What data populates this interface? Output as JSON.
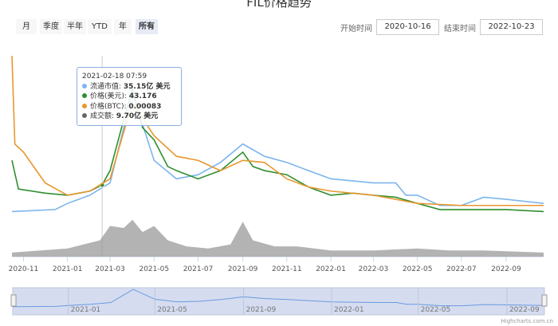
{
  "title": "FIL价格趋势",
  "range_buttons": [
    {
      "label": "月"
    },
    {
      "label": "季度"
    },
    {
      "label": "半年"
    },
    {
      "label": "YTD"
    },
    {
      "label": "年"
    },
    {
      "label": "所有",
      "selected": true
    }
  ],
  "start_label": "开始时间",
  "start_value": "2020-10-16",
  "end_label": "结束时间",
  "end_value": "2022-10-23",
  "tooltip": {
    "date": "2021-02-18 07:59",
    "rows": [
      {
        "label": "流通市值: ",
        "value": "35.15亿 美元",
        "color": "#7cb5ec"
      },
      {
        "label": "价格(美元): ",
        "value": "43.176",
        "color": "#2f8f2f"
      },
      {
        "label": "价格(BTC): ",
        "value": "0.00083",
        "color": "#e8962e"
      },
      {
        "label": "成交额: ",
        "value": "9.70亿 美元",
        "color": "#666666"
      }
    ]
  },
  "credit": "Highcharts.com.cn",
  "chart_data": {
    "type": "line",
    "title": "FIL价格趋势",
    "xlim": [
      "2020-10-16",
      "2022-10-23"
    ],
    "ylim": [
      0,
      100
    ],
    "x_ticks": [
      "2020-11",
      "2021-01",
      "2021-03",
      "2021-05",
      "2021-07",
      "2021-09",
      "2021-11",
      "2022-01",
      "2022-03",
      "2022-05",
      "2022-07",
      "2022-09"
    ],
    "navigator_ticks": [
      "2021-01",
      "2021-05",
      "2021-09",
      "2022-01",
      "2022-05",
      "2022-09"
    ],
    "series": [
      {
        "name": "流通市值",
        "color": "#7cb5ec",
        "points": [
          [
            "2020-10-16",
            22
          ],
          [
            "2020-12-15",
            23
          ],
          [
            "2021-01-01",
            26
          ],
          [
            "2021-02-01",
            30
          ],
          [
            "2021-03-01",
            36
          ],
          [
            "2021-03-20",
            63
          ],
          [
            "2021-04-01",
            80
          ],
          [
            "2021-05-01",
            47
          ],
          [
            "2021-06-01",
            38
          ],
          [
            "2021-07-01",
            40
          ],
          [
            "2021-08-01",
            46
          ],
          [
            "2021-09-01",
            55
          ],
          [
            "2021-10-01",
            49
          ],
          [
            "2021-11-01",
            46
          ],
          [
            "2021-12-01",
            42
          ],
          [
            "2022-01-01",
            38
          ],
          [
            "2022-03-01",
            36
          ],
          [
            "2022-04-01",
            36
          ],
          [
            "2022-04-15",
            30
          ],
          [
            "2022-05-01",
            30
          ],
          [
            "2022-06-01",
            25
          ],
          [
            "2022-07-01",
            25
          ],
          [
            "2022-08-01",
            29
          ],
          [
            "2022-09-01",
            28
          ],
          [
            "2022-10-23",
            26
          ]
        ]
      },
      {
        "name": "价格(美元)",
        "color": "#2f8f2f",
        "points": [
          [
            "2020-10-16",
            47
          ],
          [
            "2020-10-25",
            33
          ],
          [
            "2020-12-01",
            31
          ],
          [
            "2021-01-01",
            30
          ],
          [
            "2021-02-01",
            32
          ],
          [
            "2021-02-18",
            35
          ],
          [
            "2021-03-01",
            42
          ],
          [
            "2021-03-20",
            67
          ],
          [
            "2021-04-01",
            82
          ],
          [
            "2021-04-15",
            63
          ],
          [
            "2021-05-01",
            57
          ],
          [
            "2021-05-20",
            44
          ],
          [
            "2021-06-01",
            42
          ],
          [
            "2021-07-01",
            38
          ],
          [
            "2021-08-01",
            42
          ],
          [
            "2021-09-01",
            51
          ],
          [
            "2021-09-15",
            44
          ],
          [
            "2021-10-01",
            42
          ],
          [
            "2021-11-01",
            40
          ],
          [
            "2021-12-01",
            34
          ],
          [
            "2022-01-01",
            30
          ],
          [
            "2022-02-01",
            31
          ],
          [
            "2022-03-01",
            30
          ],
          [
            "2022-04-01",
            29
          ],
          [
            "2022-05-01",
            26
          ],
          [
            "2022-06-01",
            23
          ],
          [
            "2022-07-01",
            23
          ],
          [
            "2022-08-01",
            23
          ],
          [
            "2022-09-01",
            23
          ],
          [
            "2022-10-23",
            22
          ]
        ]
      },
      {
        "name": "价格(BTC)",
        "color": "#e8962e",
        "points": [
          [
            "2020-10-16",
            98
          ],
          [
            "2020-10-20",
            55
          ],
          [
            "2020-11-01",
            51
          ],
          [
            "2020-12-01",
            36
          ],
          [
            "2021-01-01",
            30
          ],
          [
            "2021-02-01",
            32
          ],
          [
            "2021-03-01",
            38
          ],
          [
            "2021-03-20",
            61
          ],
          [
            "2021-04-01",
            75
          ],
          [
            "2021-05-01",
            59
          ],
          [
            "2021-06-01",
            49
          ],
          [
            "2021-07-01",
            47
          ],
          [
            "2021-08-01",
            42
          ],
          [
            "2021-09-01",
            47
          ],
          [
            "2021-10-01",
            46
          ],
          [
            "2021-11-01",
            38
          ],
          [
            "2021-12-01",
            34
          ],
          [
            "2022-01-01",
            32
          ],
          [
            "2022-03-01",
            30
          ],
          [
            "2022-05-01",
            26
          ],
          [
            "2022-07-01",
            25
          ],
          [
            "2022-09-01",
            25
          ],
          [
            "2022-10-23",
            25
          ]
        ]
      },
      {
        "name": "成交额",
        "color": "#888888",
        "type": "area",
        "points": [
          [
            "2020-10-16",
            2
          ],
          [
            "2021-01-01",
            4
          ],
          [
            "2021-02-15",
            8
          ],
          [
            "2021-03-01",
            15
          ],
          [
            "2021-03-20",
            14
          ],
          [
            "2021-04-01",
            18
          ],
          [
            "2021-04-15",
            12
          ],
          [
            "2021-05-01",
            15
          ],
          [
            "2021-05-20",
            8
          ],
          [
            "2021-06-15",
            5
          ],
          [
            "2021-07-15",
            4
          ],
          [
            "2021-08-15",
            6
          ],
          [
            "2021-09-01",
            17
          ],
          [
            "2021-09-15",
            8
          ],
          [
            "2021-10-15",
            5
          ],
          [
            "2021-11-15",
            5
          ],
          [
            "2022-01-01",
            3
          ],
          [
            "2022-03-01",
            3
          ],
          [
            "2022-05-01",
            4
          ],
          [
            "2022-06-15",
            3
          ],
          [
            "2022-08-01",
            3
          ],
          [
            "2022-10-23",
            2
          ]
        ]
      }
    ]
  }
}
